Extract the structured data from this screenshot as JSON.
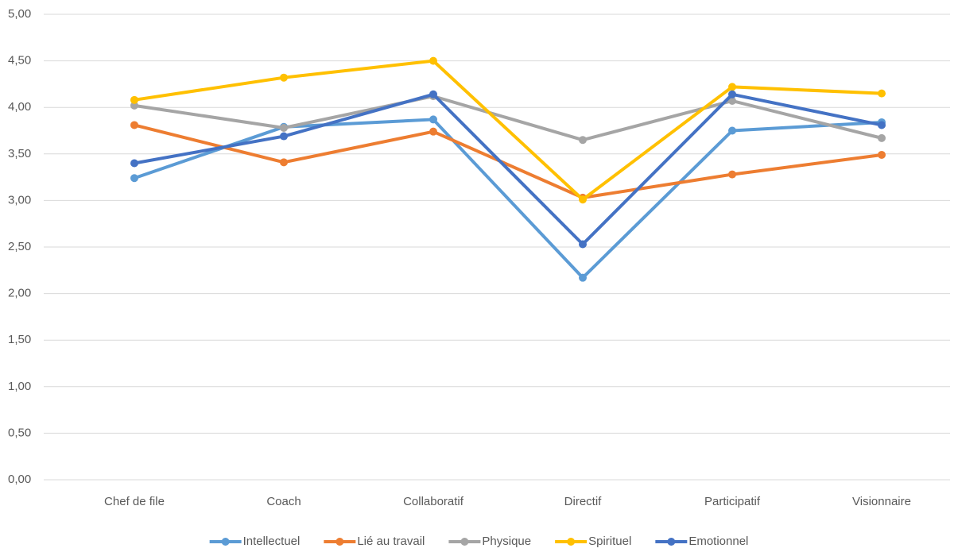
{
  "chart_data": {
    "type": "line",
    "categories": [
      "Chef de file",
      "Coach",
      "Collaboratif",
      "Directif",
      "Participatif",
      "Visionnaire"
    ],
    "series": [
      {
        "name": "Intellectuel",
        "color": "#5b9bd5",
        "values": [
          3.24,
          3.79,
          3.87,
          2.17,
          3.75,
          3.84
        ]
      },
      {
        "name": "Lié au travail",
        "color": "#ed7d31",
        "values": [
          3.81,
          3.41,
          3.74,
          3.03,
          3.28,
          3.49
        ]
      },
      {
        "name": "Physique",
        "color": "#a5a5a5",
        "values": [
          4.02,
          3.78,
          4.12,
          3.65,
          4.07,
          3.67
        ]
      },
      {
        "name": "Spirituel",
        "color": "#ffc000",
        "values": [
          4.08,
          4.32,
          4.5,
          3.01,
          4.22,
          4.15
        ]
      },
      {
        "name": "Emotionnel",
        "color": "#4472c4",
        "values": [
          3.4,
          3.69,
          4.14,
          2.53,
          4.14,
          3.81
        ]
      }
    ],
    "ylim": [
      0,
      5
    ],
    "yticks": [
      {
        "value": 0,
        "label": "0,00"
      },
      {
        "value": 0.5,
        "label": "0,50"
      },
      {
        "value": 1,
        "label": "1,00"
      },
      {
        "value": 1.5,
        "label": "1,50"
      },
      {
        "value": 2,
        "label": "2,00"
      },
      {
        "value": 2.5,
        "label": "2,50"
      },
      {
        "value": 3,
        "label": "3,00"
      },
      {
        "value": 3.5,
        "label": "3,50"
      },
      {
        "value": 4,
        "label": "4,00"
      },
      {
        "value": 4.5,
        "label": "4,50"
      },
      {
        "value": 5,
        "label": "5,00"
      }
    ],
    "grid": true,
    "legend": "bottom"
  }
}
